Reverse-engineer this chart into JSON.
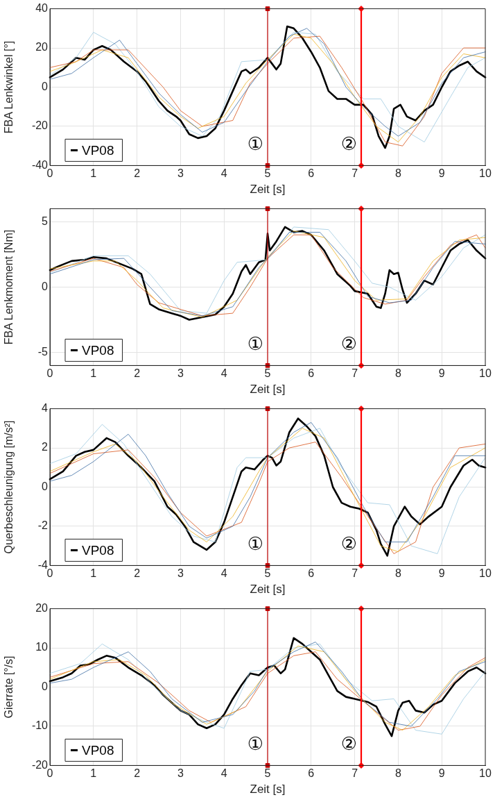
{
  "chart_data": [
    {
      "type": "line",
      "xlabel": "Zeit [s]",
      "ylabel": "FBA Lenkwinkel [°]",
      "xlim": [
        0,
        10
      ],
      "xticks": [
        0,
        1,
        2,
        3,
        4,
        5,
        6,
        7,
        8,
        9,
        10
      ],
      "ylim": [
        -40,
        40
      ],
      "yticks": [
        -40,
        -20,
        0,
        20,
        40
      ],
      "grid": true,
      "legend": "bottom left",
      "marker": "none",
      "line_style": "solid",
      "ref_lines": [
        {
          "axis": "x",
          "value": 5,
          "label": "①",
          "color": "#c00000"
        },
        {
          "axis": "x",
          "value": 7.15,
          "label": "②",
          "color": "#ff0000"
        }
      ],
      "series": [
        {
          "type": "scatter",
          "color": "#c00000",
          "marker": "square",
          "x": [
            5,
            5
          ],
          "values": [
            40,
            -40
          ]
        },
        {
          "type": "scatter",
          "color": "#ff0000",
          "marker": "diamond",
          "x": [
            7.15,
            7.15
          ],
          "values": [
            40,
            -40
          ]
        },
        {
          "color": "#3f6fa5",
          "x": [
            0,
            0.5,
            1.0,
            1.6,
            2.0,
            2.5,
            3.0,
            3.5,
            4.0,
            4.5,
            5.0,
            5.5,
            5.9,
            6.3,
            6.8,
            7.2,
            7.7,
            8.0,
            8.5,
            9.0,
            9.5,
            10
          ],
          "values": [
            4,
            7,
            15,
            24,
            12,
            -3,
            -14,
            -23,
            -18,
            -2,
            13,
            26,
            30,
            22,
            0,
            -10,
            -20,
            -25,
            -18,
            2,
            15,
            18
          ]
        },
        {
          "color": "#edb120",
          "x": [
            0,
            0.5,
            1.2,
            1.8,
            2.5,
            3.0,
            3.4,
            4.0,
            4.5,
            5.0,
            5.6,
            6.0,
            6.5,
            7.0,
            7.5,
            8.0,
            8.5,
            9.0,
            9.5,
            10
          ],
          "values": [
            8,
            12,
            19,
            15,
            -5,
            -15,
            -21,
            -15,
            2,
            14,
            27,
            25,
            12,
            -5,
            -20,
            -28,
            -15,
            5,
            17,
            15
          ]
        },
        {
          "color": "#d95319",
          "x": [
            0,
            0.6,
            1.0,
            1.8,
            2.6,
            3.0,
            3.5,
            4.2,
            4.6,
            5.0,
            5.6,
            6.2,
            6.7,
            7.2,
            7.7,
            8.1,
            8.6,
            9.0,
            9.5,
            10
          ],
          "values": [
            10,
            13,
            19,
            19,
            0,
            -12,
            -20,
            -17,
            2,
            12,
            25,
            26,
            10,
            -8,
            -28,
            -30,
            -15,
            7,
            20,
            20
          ]
        },
        {
          "color": "#9ecae1",
          "x": [
            0,
            0.6,
            1.0,
            1.5,
            2.0,
            2.5,
            3.0,
            3.5,
            3.9,
            4.4,
            5.0,
            5.6,
            6.1,
            6.6,
            7.2,
            7.6,
            8.0,
            8.6,
            9.2,
            9.6,
            10
          ],
          "values": [
            6,
            15,
            28,
            22,
            8,
            -10,
            -20,
            -25,
            -15,
            13,
            14,
            28,
            27,
            8,
            -6,
            -6,
            -20,
            -28,
            -5,
            10,
            15
          ]
        },
        {
          "name": "VP08",
          "color": "#000000",
          "x": [
            0,
            0.3,
            0.6,
            0.8,
            1.0,
            1.2,
            1.4,
            1.7,
            2.0,
            2.2,
            2.5,
            2.7,
            2.9,
            3.0,
            3.2,
            3.4,
            3.6,
            3.8,
            4.0,
            4.2,
            4.4,
            4.5,
            4.6,
            4.8,
            5.0,
            5.1,
            5.2,
            5.3,
            5.45,
            5.6,
            5.8,
            6.0,
            6.2,
            6.4,
            6.6,
            6.8,
            7.0,
            7.2,
            7.4,
            7.55,
            7.7,
            7.8,
            7.9,
            8.05,
            8.2,
            8.4,
            8.6,
            8.8,
            9.0,
            9.2,
            9.4,
            9.6,
            9.8,
            10
          ],
          "values": [
            5,
            9,
            15,
            14,
            19,
            21,
            19,
            13,
            8,
            3,
            -7,
            -12,
            -15,
            -17,
            -24,
            -26,
            -25,
            -21,
            -12,
            -2,
            8,
            9,
            7,
            10,
            15,
            12,
            9,
            12,
            31,
            30,
            25,
            18,
            10,
            -2,
            -6,
            -6,
            -9,
            -9,
            -14,
            -25,
            -31,
            -25,
            -11,
            -9,
            -15,
            -17,
            -12,
            -9,
            0,
            8,
            11,
            13,
            8,
            5
          ]
        }
      ]
    },
    {
      "type": "line",
      "xlabel": "Zeit [s]",
      "ylabel": "FBA Lenkmoment [Nm]",
      "xlim": [
        0,
        10
      ],
      "xticks": [
        0,
        1,
        2,
        3,
        4,
        5,
        6,
        7,
        8,
        9,
        10
      ],
      "ylim": [
        -6,
        6
      ],
      "yticks": [
        -5,
        0,
        5
      ],
      "grid": true,
      "legend": "bottom left",
      "marker": "none",
      "line_style": "solid",
      "ref_lines": [
        {
          "axis": "x",
          "value": 5,
          "label": "①",
          "color": "#c00000"
        },
        {
          "axis": "x",
          "value": 7.15,
          "label": "②",
          "color": "#ff0000"
        }
      ],
      "series": [
        {
          "type": "scatter",
          "color": "#c00000",
          "marker": "square",
          "x": [
            5,
            5
          ],
          "values": [
            6,
            -6
          ]
        },
        {
          "type": "scatter",
          "color": "#ff0000",
          "marker": "diamond",
          "x": [
            7.15,
            7.15
          ],
          "values": [
            6,
            -6
          ]
        },
        {
          "color": "#3f6fa5",
          "x": [
            0,
            1.0,
            1.7,
            2.3,
            2.8,
            3.5,
            4.2,
            4.8,
            5.0,
            5.5,
            6.2,
            6.8,
            7.3,
            7.8,
            8.3,
            8.8,
            9.3,
            10
          ],
          "values": [
            1.0,
            2.1,
            2.2,
            0,
            -1.8,
            -2.2,
            -1.5,
            1.5,
            2.2,
            4.2,
            4.2,
            2.0,
            -0.7,
            -1.2,
            -1.0,
            1.5,
            3.5,
            3.3
          ]
        },
        {
          "color": "#edb120",
          "x": [
            0,
            1.0,
            1.5,
            2.0,
            2.6,
            3.5,
            4.3,
            5.0,
            5.6,
            6.3,
            7.0,
            7.5,
            8.2,
            8.8,
            9.4,
            10
          ],
          "values": [
            1.4,
            2.0,
            2.0,
            0.5,
            -1.6,
            -2.3,
            -1.0,
            2.3,
            4.3,
            3.8,
            0.5,
            -1.0,
            -0.9,
            2.0,
            3.6,
            3.8
          ]
        },
        {
          "color": "#d95319",
          "x": [
            0,
            1.0,
            1.7,
            2.0,
            2.5,
            3.5,
            4.2,
            4.6,
            5.0,
            5.6,
            6.0,
            6.5,
            7.2,
            7.7,
            8.2,
            8.6,
            9.2,
            9.8,
            10
          ],
          "values": [
            1.2,
            2.2,
            1.5,
            0.2,
            -1.2,
            -2.2,
            -2.0,
            0,
            2.2,
            4.0,
            4.0,
            1.5,
            -0.8,
            -1.3,
            -1.0,
            0.8,
            3.2,
            4.0,
            3.0
          ]
        },
        {
          "color": "#9ecae1",
          "x": [
            0,
            1.0,
            1.8,
            2.3,
            3.0,
            3.6,
            4.0,
            4.3,
            5.0,
            5.6,
            6.4,
            7.0,
            7.4,
            7.8,
            8.4,
            9.0,
            9.5,
            10
          ],
          "values": [
            1.1,
            2.4,
            2.4,
            1.0,
            -1.8,
            -2.0,
            0.5,
            1.9,
            2.1,
            4.6,
            4.4,
            2.0,
            0.3,
            0,
            -1.0,
            0.8,
            3.0,
            4.0
          ]
        },
        {
          "name": "VP08",
          "color": "#000000",
          "x": [
            0,
            0.2,
            0.5,
            0.8,
            1.0,
            1.3,
            1.6,
            1.9,
            2.1,
            2.3,
            2.5,
            2.8,
            3.0,
            3.2,
            3.5,
            3.8,
            4.0,
            4.2,
            4.4,
            4.5,
            4.6,
            4.8,
            4.95,
            5.0,
            5.05,
            5.2,
            5.4,
            5.6,
            5.8,
            6.0,
            6.3,
            6.6,
            6.9,
            7.0,
            7.3,
            7.5,
            7.6,
            7.7,
            7.8,
            7.9,
            8.0,
            8.1,
            8.2,
            8.4,
            8.6,
            8.8,
            9.0,
            9.2,
            9.4,
            9.6,
            9.8,
            10
          ],
          "values": [
            1.3,
            1.6,
            2.0,
            2.1,
            2.3,
            2.2,
            1.8,
            1.4,
            1.0,
            -1.3,
            -1.7,
            -2.0,
            -2.2,
            -2.5,
            -2.3,
            -2.1,
            -1.5,
            -0.5,
            1.2,
            1.7,
            1.0,
            1.9,
            2.1,
            4.1,
            2.8,
            3.5,
            4.6,
            4.2,
            4.3,
            4.0,
            2.8,
            1.0,
            0.1,
            -0.3,
            -0.5,
            -1.5,
            -1.6,
            -0.5,
            1.3,
            1.0,
            1.1,
            -0.2,
            -1.2,
            -0.5,
            0.5,
            0.2,
            1.5,
            2.8,
            3.3,
            3.6,
            2.8,
            2.2
          ]
        }
      ]
    },
    {
      "type": "line",
      "xlabel": "Zeit [s]",
      "ylabel": "Querbeschleunigung [m/s²]",
      "xlim": [
        0,
        10
      ],
      "xticks": [
        0,
        1,
        2,
        3,
        4,
        5,
        6,
        7,
        8,
        9,
        10
      ],
      "ylim": [
        -4,
        4
      ],
      "yticks": [
        -4,
        -2,
        0,
        2,
        4
      ],
      "grid": true,
      "legend": "bottom left",
      "marker": "none",
      "line_style": "solid",
      "ref_lines": [
        {
          "axis": "x",
          "value": 5,
          "label": "①",
          "color": "#c00000"
        },
        {
          "axis": "x",
          "value": 7.15,
          "label": "②",
          "color": "#ff0000"
        }
      ],
      "series": [
        {
          "type": "scatter",
          "color": "#c00000",
          "marker": "square",
          "x": [
            5,
            5
          ],
          "values": [
            4,
            -4
          ]
        },
        {
          "type": "scatter",
          "color": "#ff0000",
          "marker": "diamond",
          "x": [
            7.15,
            7.15
          ],
          "values": [
            4,
            -4
          ]
        },
        {
          "color": "#3f6fa5",
          "x": [
            0,
            0.5,
            1.0,
            1.8,
            2.2,
            2.7,
            3.2,
            3.6,
            4.2,
            4.6,
            5.0,
            5.6,
            6.0,
            6.6,
            7.2,
            7.7,
            8.2,
            8.8,
            9.3,
            10
          ],
          "values": [
            0.3,
            0.6,
            1.3,
            2.7,
            1.6,
            -0.3,
            -2.0,
            -2.6,
            -2.0,
            -0.5,
            1.5,
            2.8,
            3.3,
            1.5,
            -1.0,
            -2.8,
            -2.8,
            -0.5,
            1.6,
            1.6
          ]
        },
        {
          "color": "#edb120",
          "x": [
            0,
            1.0,
            1.5,
            2.0,
            2.6,
            3.2,
            3.6,
            4.2,
            4.8,
            5.0,
            5.8,
            6.3,
            7.0,
            7.6,
            8.0,
            8.6,
            9.2,
            10
          ],
          "values": [
            0.8,
            1.8,
            2.2,
            1.3,
            -0.5,
            -2.2,
            -2.8,
            -1.5,
            0.8,
            1.5,
            3.0,
            2.5,
            -0.5,
            -3.0,
            -3.3,
            -1.5,
            1.0,
            2.0
          ]
        },
        {
          "color": "#d95319",
          "x": [
            0,
            1.0,
            1.8,
            2.4,
            3.0,
            3.6,
            4.4,
            4.8,
            5.0,
            5.5,
            6.1,
            6.7,
            7.4,
            7.9,
            8.4,
            8.8,
            9.4,
            10
          ],
          "values": [
            0.7,
            1.7,
            1.9,
            0.5,
            -1.3,
            -2.5,
            -1.8,
            0.2,
            1.3,
            2.0,
            2.3,
            0.5,
            -1.8,
            -3.4,
            -2.8,
            0,
            2.0,
            2.2
          ]
        },
        {
          "color": "#9ecae1",
          "x": [
            0,
            0.6,
            1.2,
            1.7,
            2.2,
            2.8,
            3.3,
            3.8,
            4.3,
            4.5,
            5.0,
            5.6,
            6.2,
            6.7,
            7.3,
            7.8,
            8.3,
            8.9,
            9.4,
            10
          ],
          "values": [
            1.2,
            1.7,
            3.2,
            2.2,
            0.5,
            -1.5,
            -2.5,
            -2.8,
            1.0,
            1.5,
            1.5,
            2.5,
            3.0,
            1.0,
            -0.8,
            -0.9,
            -3.0,
            -3.4,
            -0.5,
            1.5
          ]
        },
        {
          "name": "VP08",
          "color": "#000000",
          "x": [
            0,
            0.3,
            0.6,
            0.8,
            1.0,
            1.3,
            1.5,
            1.8,
            2.1,
            2.4,
            2.7,
            2.9,
            3.1,
            3.3,
            3.6,
            3.8,
            4.0,
            4.2,
            4.4,
            4.5,
            4.7,
            4.9,
            5.0,
            5.1,
            5.2,
            5.3,
            5.5,
            5.7,
            5.9,
            6.1,
            6.3,
            6.5,
            6.7,
            6.9,
            7.1,
            7.3,
            7.5,
            7.6,
            7.75,
            7.9,
            8.0,
            8.15,
            8.3,
            8.5,
            8.7,
            9.0,
            9.2,
            9.5,
            9.7,
            9.85,
            10
          ],
          "values": [
            0.4,
            0.8,
            1.6,
            1.8,
            1.9,
            2.5,
            2.3,
            1.6,
            1.0,
            0.3,
            -1.0,
            -1.4,
            -2.0,
            -2.8,
            -3.2,
            -2.8,
            -1.8,
            -0.5,
            0.8,
            1.0,
            0.9,
            1.4,
            1.6,
            1.5,
            1.1,
            1.3,
            2.8,
            3.5,
            3.1,
            2.6,
            1.6,
            0.0,
            -0.8,
            -1.0,
            -1.1,
            -1.3,
            -2.2,
            -2.9,
            -3.5,
            -2.0,
            -1.6,
            -1.0,
            -1.5,
            -1.9,
            -1.5,
            -1.0,
            0,
            1.1,
            1.4,
            1.1,
            1.0
          ]
        }
      ]
    },
    {
      "type": "line",
      "xlabel": "Zeit [s]",
      "ylabel": "Gierrate [°/s]",
      "xlim": [
        0,
        10
      ],
      "xticks": [
        0,
        1,
        2,
        3,
        4,
        5,
        6,
        7,
        8,
        9,
        10
      ],
      "ylim": [
        -20,
        20
      ],
      "yticks": [
        -20,
        -10,
        0,
        10,
        20
      ],
      "grid": true,
      "legend": "bottom left",
      "marker": "none",
      "line_style": "solid",
      "ref_lines": [
        {
          "axis": "x",
          "value": 5,
          "label": "①",
          "color": "#c00000"
        },
        {
          "axis": "x",
          "value": 7.15,
          "label": "②",
          "color": "#ff0000"
        }
      ],
      "series": [
        {
          "type": "scatter",
          "color": "#c00000",
          "marker": "square",
          "x": [
            5,
            5
          ],
          "values": [
            20,
            -20
          ]
        },
        {
          "type": "scatter",
          "color": "#ff0000",
          "marker": "diamond",
          "x": [
            7.15,
            7.15
          ],
          "values": [
            20,
            -20
          ]
        },
        {
          "color": "#3f6fa5",
          "x": [
            0,
            0.5,
            1.0,
            1.8,
            2.3,
            2.8,
            3.5,
            4.2,
            4.7,
            5.0,
            5.6,
            6.1,
            6.7,
            7.2,
            7.8,
            8.3,
            8.9,
            9.4,
            10
          ],
          "values": [
            1.0,
            2.0,
            5.0,
            9.0,
            4.0,
            -3.0,
            -9.0,
            -7.0,
            -1.0,
            4.5,
            9.0,
            11.5,
            4.0,
            -3.5,
            -9.0,
            -10.0,
            -3.0,
            4.0,
            6.5
          ]
        },
        {
          "color": "#edb120",
          "x": [
            0,
            1.0,
            1.6,
            2.2,
            2.8,
            3.6,
            4.3,
            5.0,
            5.7,
            6.3,
            7.0,
            7.7,
            8.1,
            8.7,
            9.3,
            10
          ],
          "values": [
            2.0,
            6.5,
            7.0,
            3.0,
            -4.0,
            -9.5,
            -6.0,
            4.0,
            10.5,
            9.0,
            -1.0,
            -9.0,
            -11.0,
            -5.0,
            3.0,
            7.0
          ]
        },
        {
          "color": "#d95319",
          "x": [
            0,
            1.0,
            1.8,
            2.5,
            3.2,
            3.7,
            4.5,
            5.0,
            5.6,
            6.1,
            6.6,
            7.4,
            8.0,
            8.5,
            9.0,
            9.6,
            10
          ],
          "values": [
            2.5,
            6.0,
            6.5,
            1.0,
            -6.0,
            -9.0,
            -5.0,
            3.5,
            8.0,
            9.0,
            2.0,
            -5.5,
            -11.0,
            -10.0,
            -2.0,
            5.0,
            7.5
          ]
        },
        {
          "color": "#9ecae1",
          "x": [
            0,
            0.7,
            1.2,
            1.8,
            2.4,
            3.0,
            3.6,
            4.0,
            4.4,
            4.6,
            5.0,
            5.6,
            6.2,
            6.8,
            7.4,
            7.9,
            8.4,
            9.0,
            9.5,
            10
          ],
          "values": [
            3.5,
            6.0,
            11.0,
            7.0,
            0,
            -6.0,
            -9.0,
            -10.5,
            -1.0,
            4.0,
            4.5,
            10.0,
            11.0,
            2.0,
            -3.5,
            -3.0,
            -11.0,
            -12.0,
            -3.0,
            4.0
          ]
        },
        {
          "name": "VP08",
          "color": "#000000",
          "x": [
            0,
            0.3,
            0.5,
            0.7,
            0.9,
            1.1,
            1.3,
            1.5,
            1.8,
            2.1,
            2.4,
            2.6,
            2.8,
            3.0,
            3.2,
            3.4,
            3.6,
            3.8,
            4.0,
            4.2,
            4.4,
            4.6,
            4.8,
            5.0,
            5.15,
            5.3,
            5.4,
            5.6,
            5.8,
            6.0,
            6.2,
            6.4,
            6.6,
            6.8,
            7.0,
            7.3,
            7.5,
            7.7,
            7.85,
            8.0,
            8.1,
            8.25,
            8.4,
            8.6,
            8.8,
            9.0,
            9.3,
            9.6,
            9.8,
            10
          ],
          "values": [
            1.5,
            2.5,
            3.5,
            5.5,
            5.8,
            7.0,
            8.0,
            7.5,
            5.0,
            3.0,
            0.5,
            -2.0,
            -4.0,
            -6.0,
            -7.0,
            -9.5,
            -10.5,
            -9.5,
            -7.0,
            -3.0,
            0.5,
            3.5,
            3.0,
            5.0,
            5.5,
            3.5,
            4.5,
            12.5,
            11.0,
            9.0,
            7.0,
            3.0,
            -1.0,
            -2.5,
            -3.0,
            -3.8,
            -5.0,
            -9.5,
            -12.5,
            -6.0,
            -4.0,
            -3.5,
            -6.0,
            -6.5,
            -4.5,
            -3.5,
            1.0,
            4.0,
            5.0,
            3.5
          ]
        }
      ]
    }
  ]
}
